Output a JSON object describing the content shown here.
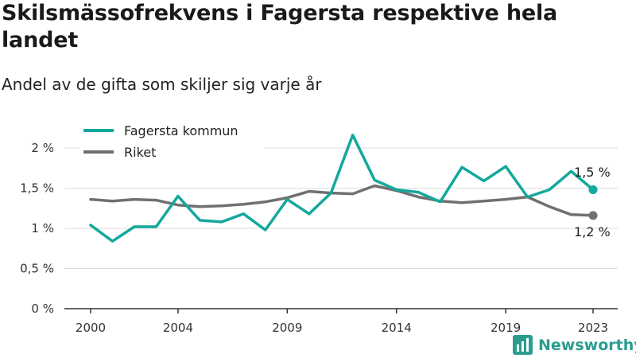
{
  "title": "Skilsmässofrekvens i Fagersta respektive hela landet",
  "subtitle": "Andel av de gifta som skiljer sig varje år",
  "brand": "Newsworthy",
  "colors": {
    "fagersta": "#14a89c",
    "riket": "#707070",
    "grid": "#dddddd",
    "axis": "#333333"
  },
  "chart_data": {
    "type": "line",
    "x": [
      2000,
      2001,
      2002,
      2003,
      2004,
      2005,
      2006,
      2007,
      2008,
      2009,
      2010,
      2011,
      2012,
      2013,
      2014,
      2015,
      2016,
      2017,
      2018,
      2019,
      2020,
      2021,
      2022,
      2023
    ],
    "series": [
      {
        "name": "Fagersta kommun",
        "values": [
          1.04,
          0.84,
          1.02,
          1.02,
          1.4,
          1.1,
          1.08,
          1.18,
          0.98,
          1.36,
          1.18,
          1.44,
          2.16,
          1.6,
          1.48,
          1.45,
          1.33,
          1.76,
          1.59,
          1.77,
          1.39,
          1.48,
          1.71,
          1.48
        ],
        "end_label": "1,5 %"
      },
      {
        "name": "Riket",
        "values": [
          1.36,
          1.34,
          1.36,
          1.35,
          1.29,
          1.27,
          1.28,
          1.3,
          1.33,
          1.38,
          1.46,
          1.44,
          1.43,
          1.53,
          1.47,
          1.39,
          1.34,
          1.32,
          1.34,
          1.36,
          1.39,
          1.27,
          1.17,
          1.16
        ],
        "end_label": "1,2 %"
      }
    ],
    "x_ticks": [
      2000,
      2004,
      2009,
      2014,
      2019,
      2023
    ],
    "y_ticks": [
      0,
      0.5,
      1,
      1.5,
      2
    ],
    "y_tick_labels": [
      "0 %",
      "0,5 %",
      "1 %",
      "1,5 %",
      "2 %"
    ],
    "xlim": [
      2000,
      2023
    ],
    "ylim": [
      0,
      2.2
    ],
    "grid": true,
    "legend": "top-left"
  }
}
